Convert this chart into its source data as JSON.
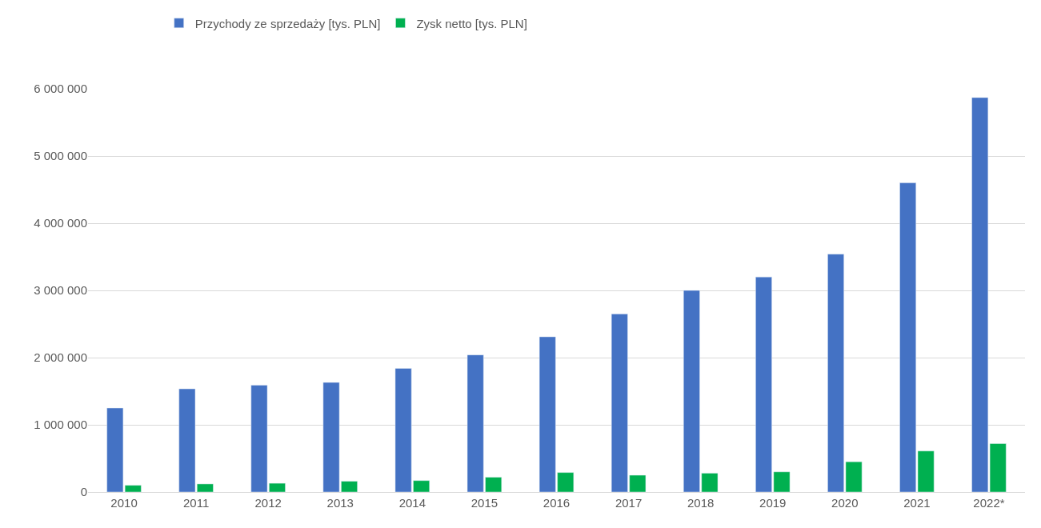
{
  "chart_data": {
    "type": "bar",
    "categories": [
      "2010",
      "2011",
      "2012",
      "2013",
      "2014",
      "2015",
      "2016",
      "2017",
      "2018",
      "2019",
      "2020",
      "2021",
      "2022*"
    ],
    "series": [
      {
        "name": "Przychody ze sprzedaży [tys. PLN]",
        "color": "#4472c4",
        "values": [
          1250000,
          1535000,
          1590000,
          1630000,
          1840000,
          2040000,
          2310000,
          2650000,
          3000000,
          3200000,
          3540000,
          4600000,
          5870000
        ]
      },
      {
        "name": "Zysk netto [tys. PLN]",
        "color": "#00b050",
        "values": [
          100000,
          120000,
          130000,
          160000,
          170000,
          220000,
          290000,
          250000,
          280000,
          300000,
          450000,
          610000,
          720000
        ]
      }
    ],
    "ylim": [
      0,
      6000000
    ],
    "yticks": [
      {
        "value": 0,
        "label": "0"
      },
      {
        "value": 1000000,
        "label": "1 000 000"
      },
      {
        "value": 2000000,
        "label": "2 000 000"
      },
      {
        "value": 3000000,
        "label": "3 000 000"
      },
      {
        "value": 4000000,
        "label": "4 000 000"
      },
      {
        "value": 5000000,
        "label": "5 000 000"
      },
      {
        "value": 6000000,
        "label": "6 000 000"
      }
    ],
    "grid": "y",
    "legend": "top"
  }
}
